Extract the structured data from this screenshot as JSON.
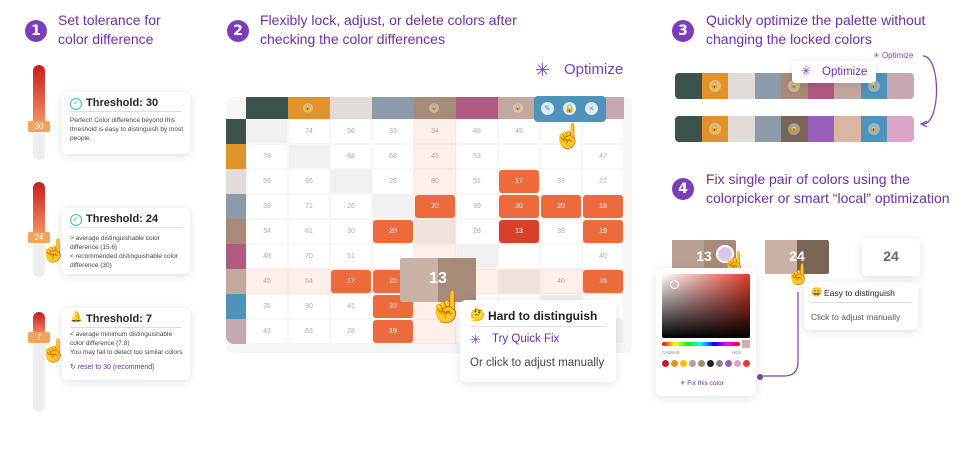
{
  "steps": {
    "s1": {
      "num": "1",
      "title_line1": "Set tolerance for",
      "title_line2": "color difference"
    },
    "s2": {
      "num": "2",
      "title_line1": "Flexibly lock, adjust, or delete colors after",
      "title_line2": "checking the color differences"
    },
    "s3": {
      "num": "3",
      "title_line1": "Quickly optimize the palette without",
      "title_line2": "changing the locked colors"
    },
    "s4": {
      "num": "4",
      "title_line1": "Fix single pair of colors using the",
      "title_line2": "colorpicker or smart “local” optimization"
    }
  },
  "thresholds": [
    {
      "thumb": "30",
      "title": "Threshold: 30",
      "lines": [
        "Perfect! Color difference beyond this",
        "threshold is easy to distinguish by most",
        "people."
      ],
      "icon": "check-circle-icon"
    },
    {
      "thumb": "24",
      "title": "Threshold: 24",
      "lines": [
        "> average distinguishable color",
        "difference (15.6)",
        "< recommended distinguishable color",
        "difference (30)"
      ],
      "icon": "check-circle-icon"
    },
    {
      "thumb": "7",
      "title": "Threshold: 7",
      "lines": [
        "< average minimum distinguishable",
        "color difference (7.8)",
        "You may fail to detect too similar colors"
      ],
      "link": "reset to 30 (recommend)",
      "icon": "bell-icon"
    }
  ],
  "palette": {
    "colors": [
      "#3b524d",
      "#e0932d",
      "#e2dcd9",
      "#8d9aa9",
      "#a88a78",
      "#b05a82",
      "#c2a89f",
      "#4f93ba",
      "#c6a8ae"
    ],
    "locked": [
      false,
      true,
      false,
      false,
      true,
      false,
      true,
      false,
      false
    ]
  },
  "matrix": {
    "rows": [
      [
        "",
        "74",
        "56",
        "33",
        "34",
        "48",
        "45",
        "",
        ""
      ],
      [
        "78",
        "",
        "68",
        "68",
        "45",
        "53",
        "",
        "",
        "47"
      ],
      [
        "56",
        "66",
        "",
        "28",
        "80",
        "51",
        "17",
        "33",
        "27"
      ],
      [
        "33",
        "71",
        "26",
        "",
        "20",
        "39",
        "20",
        "20",
        "18"
      ],
      [
        "34",
        "61",
        "30",
        "20",
        "",
        "28",
        "13",
        "39",
        "19"
      ],
      [
        "48",
        "70",
        "51",
        "",
        "",
        "",
        "",
        "",
        "40"
      ],
      [
        "45",
        "54",
        "17",
        "20",
        "",
        "",
        "",
        "40",
        "16"
      ],
      [
        "35",
        "90",
        "41",
        "20",
        "",
        "",
        "",
        "",
        ""
      ],
      [
        "43",
        "63",
        "28",
        "19",
        "",
        "",
        "",
        "",
        ""
      ]
    ],
    "highlight_color": "#ec6a3c",
    "dark_highlight_color": "#d9402a"
  },
  "popup": {
    "big_value": "13",
    "title": "Hard to distinguish",
    "quick_fix": "Try Quick Fix",
    "manual": "Or click to adjust manually"
  },
  "optimize": {
    "label": "Optimize",
    "small_label": "Optimize"
  },
  "step3": {
    "row1": [
      "#3b524d",
      "#e0932d",
      "#e2dcd9",
      "#8d9aa9",
      "#a88a78",
      "#b05a82",
      "#c2a89f",
      "#4f93ba",
      "#c6a8ae"
    ],
    "row2": [
      "#3b524d",
      "#e0932d",
      "#e2dcd9",
      "#8d9aa9",
      "#7a6457",
      "#9a5fb8",
      "#d9b5a3",
      "#4f93ba",
      "#dba5c9"
    ],
    "locked": [
      false,
      true,
      false,
      false,
      true,
      false,
      false,
      true,
      false
    ]
  },
  "step4": {
    "pair_value": "13",
    "fixed_value": "24",
    "plain_value": "24",
    "easy_title": "Easy to distinguish",
    "easy_text": "Click to adjust manually",
    "fix_label": "Fix this color",
    "hex": "CAB8A8",
    "hex_mode": "HEX"
  }
}
